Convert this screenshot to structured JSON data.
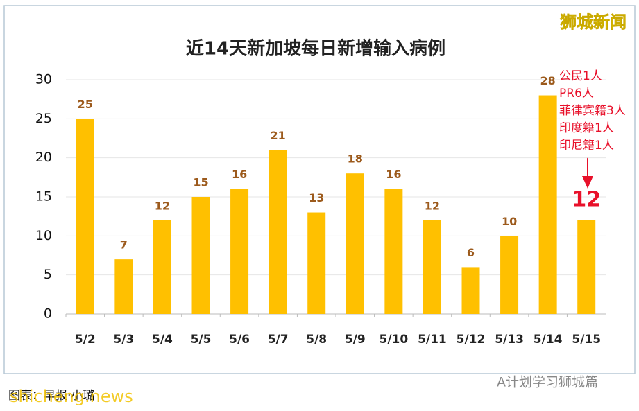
{
  "chart_data": {
    "type": "bar",
    "title": "近14天新加坡每日新增输入病例",
    "categories": [
      "5/2",
      "5/3",
      "5/4",
      "5/5",
      "5/6",
      "5/7",
      "5/8",
      "5/9",
      "5/10",
      "5/11",
      "5/12",
      "5/13",
      "5/14",
      "5/15"
    ],
    "values": [
      25,
      7,
      12,
      15,
      16,
      21,
      13,
      18,
      16,
      12,
      6,
      10,
      28,
      12
    ],
    "color": "#ffc000",
    "ylim": [
      0,
      30
    ],
    "yticks": [
      0,
      5,
      10,
      15,
      20,
      25,
      30
    ],
    "grid": true,
    "annotation": [
      "公民1人",
      "PR6人",
      "菲律宾籍3人",
      "印度籍1人",
      "印尼籍1人"
    ]
  },
  "watermark": "狮城新闻",
  "source": "图表：早报·小璐",
  "site": "shicheng.news",
  "account": "A计划学习狮城篇"
}
